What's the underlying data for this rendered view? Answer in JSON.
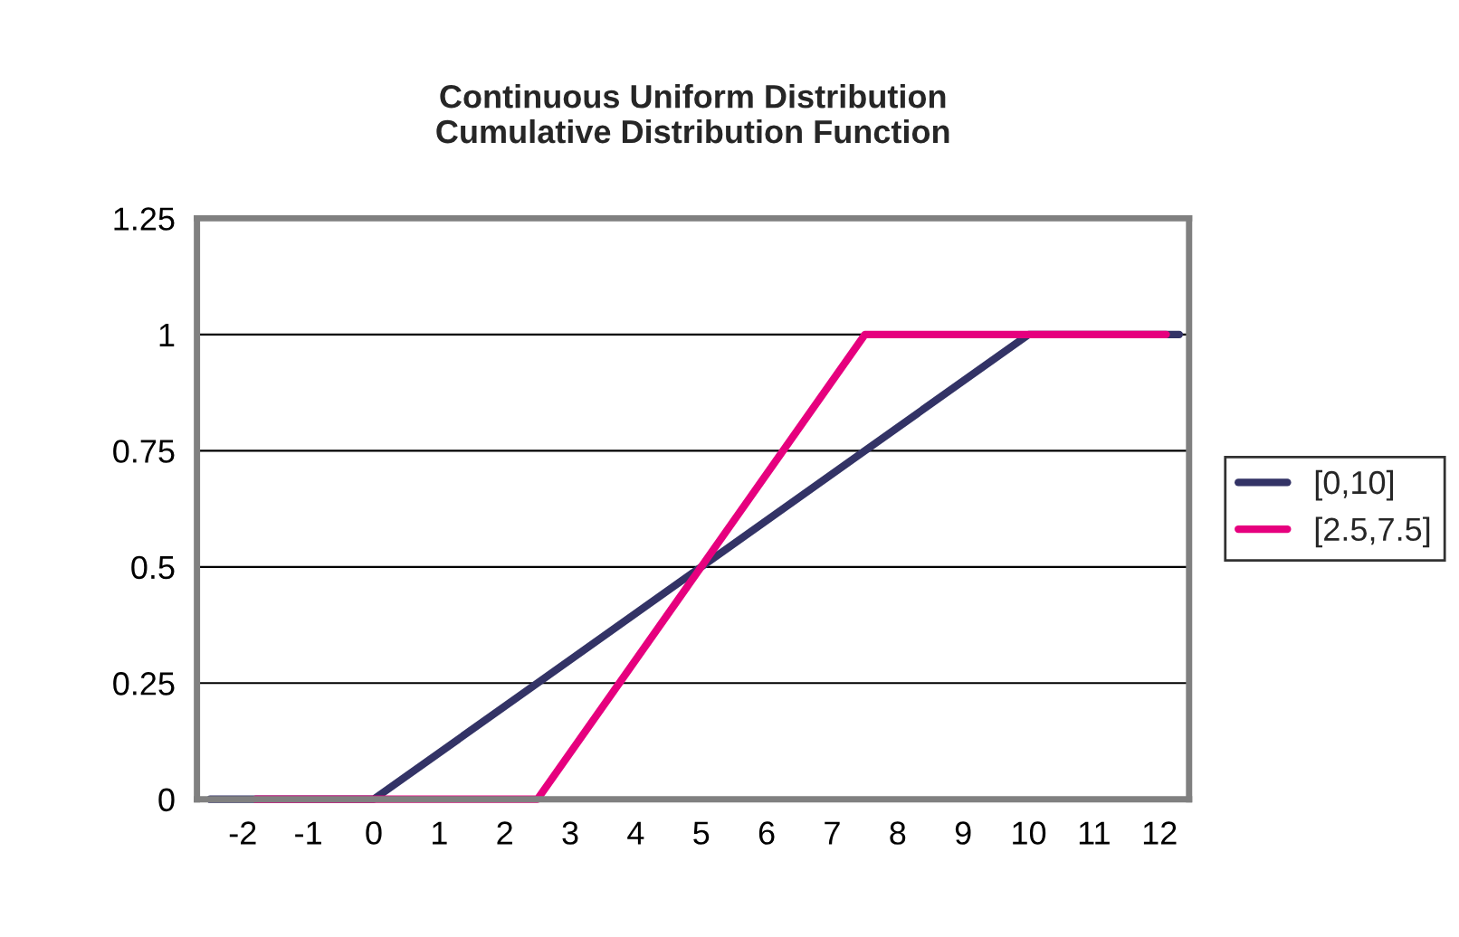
{
  "chart_data": {
    "type": "line",
    "title": "Continuous Uniform Distribution\nCumulative Distribution Function",
    "series": [
      {
        "name": "[0,10]",
        "color": "#333366",
        "x": [
          -2.5,
          0,
          10,
          12.3
        ],
        "values": [
          0,
          0,
          1,
          1
        ]
      },
      {
        "name": "[2.5,7.5]",
        "color": "#e6007e",
        "x": [
          -1.8,
          2.5,
          7.5,
          12.1
        ],
        "values": [
          0,
          0,
          1,
          1
        ]
      }
    ],
    "xlim": [
      -2.7,
      12.45
    ],
    "xticks": [
      -2,
      -1,
      0,
      1,
      2,
      3,
      4,
      5,
      6,
      7,
      8,
      9,
      10,
      11,
      12
    ],
    "ylim": [
      0,
      1.25
    ],
    "yticks": [
      0,
      0.25,
      0.5,
      0.75,
      1,
      1.25
    ],
    "grid": "y",
    "legend": "right",
    "line_style": "solid",
    "marker": "none"
  }
}
